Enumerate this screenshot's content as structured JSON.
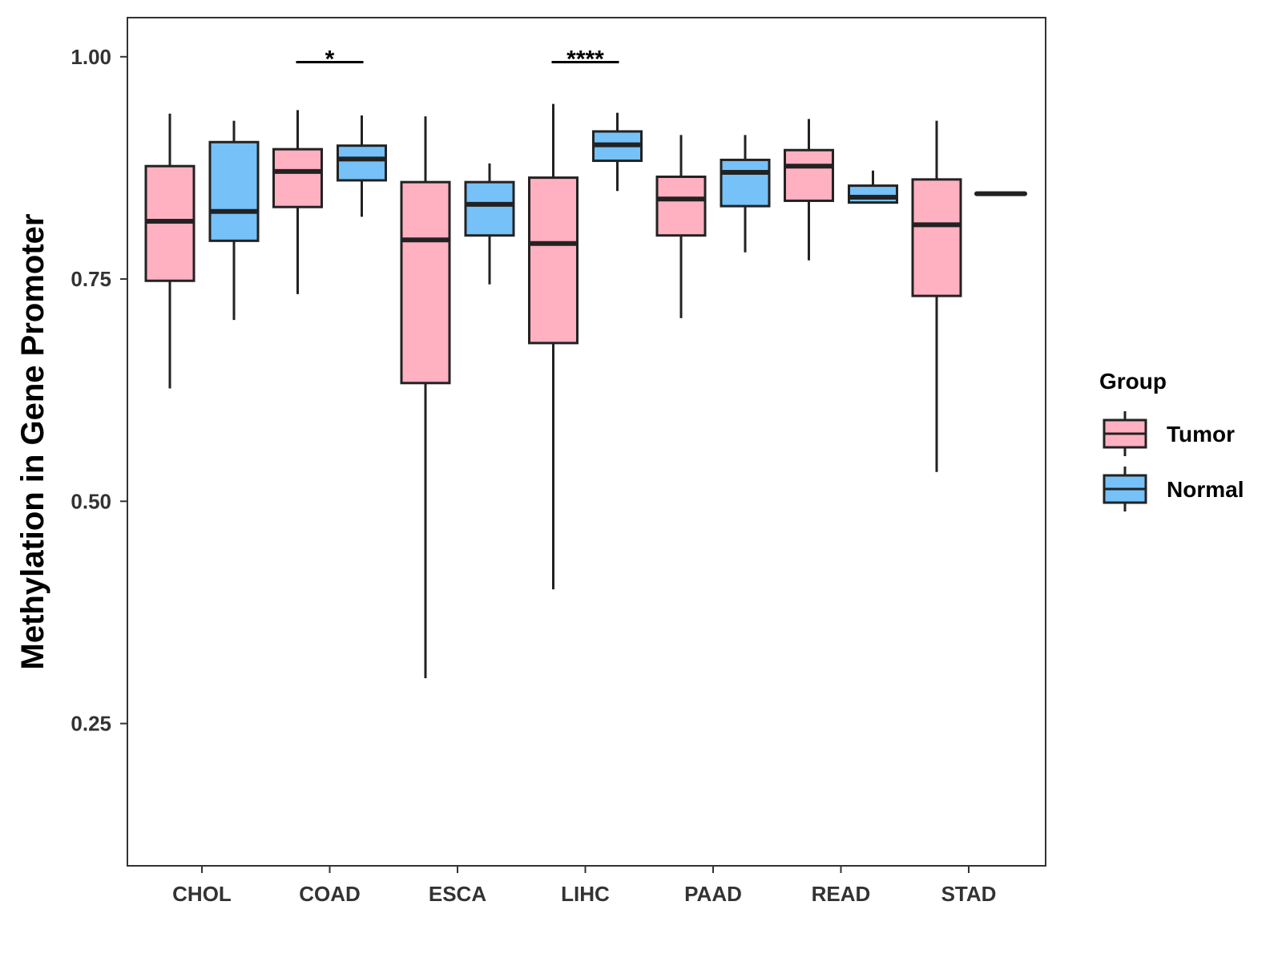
{
  "chart_data": {
    "type": "boxplot",
    "title": "",
    "xlabel": "",
    "ylabel": "Methylation in Gene Promoter",
    "ylim": [
      0.09,
      1.044
    ],
    "yticks": [
      {
        "value": 0.25,
        "label": "0.25"
      },
      {
        "value": 0.5,
        "label": "0.50"
      },
      {
        "value": 0.75,
        "label": "0.75"
      },
      {
        "value": 1.0,
        "label": "1.00"
      }
    ],
    "categories": [
      "CHOL",
      "COAD",
      "ESCA",
      "LIHC",
      "PAAD",
      "READ",
      "STAD"
    ],
    "legend": {
      "title": "Group",
      "position": "right",
      "entries": [
        {
          "name": "Tumor",
          "color": "#FFB0C1"
        },
        {
          "name": "Normal",
          "color": "#75C1F8"
        }
      ]
    },
    "series": [
      {
        "name": "Tumor",
        "color": "#FFB0C1",
        "boxes": [
          {
            "category": "CHOL",
            "min": 0.627,
            "q1": 0.748,
            "median": 0.815,
            "q3": 0.877,
            "max": 0.936
          },
          {
            "category": "COAD",
            "min": 0.733,
            "q1": 0.831,
            "median": 0.871,
            "q3": 0.896,
            "max": 0.94
          },
          {
            "category": "ESCA",
            "min": 0.301,
            "q1": 0.633,
            "median": 0.794,
            "q3": 0.859,
            "max": 0.933
          },
          {
            "category": "LIHC",
            "min": 0.401,
            "q1": 0.678,
            "median": 0.79,
            "q3": 0.864,
            "max": 0.947
          },
          {
            "category": "PAAD",
            "min": 0.706,
            "q1": 0.799,
            "median": 0.84,
            "q3": 0.865,
            "max": 0.912
          },
          {
            "category": "READ",
            "min": 0.771,
            "q1": 0.838,
            "median": 0.877,
            "q3": 0.895,
            "max": 0.93
          },
          {
            "category": "STAD",
            "min": 0.533,
            "q1": 0.731,
            "median": 0.811,
            "q3": 0.862,
            "max": 0.928
          }
        ]
      },
      {
        "name": "Normal",
        "color": "#75C1F8",
        "boxes": [
          {
            "category": "CHOL",
            "min": 0.704,
            "q1": 0.793,
            "median": 0.826,
            "q3": 0.904,
            "max": 0.928
          },
          {
            "category": "COAD",
            "min": 0.82,
            "q1": 0.861,
            "median": 0.885,
            "q3": 0.9,
            "max": 0.934
          },
          {
            "category": "ESCA",
            "min": 0.744,
            "q1": 0.799,
            "median": 0.834,
            "q3": 0.859,
            "max": 0.88
          },
          {
            "category": "LIHC",
            "min": 0.849,
            "q1": 0.883,
            "median": 0.901,
            "q3": 0.916,
            "max": 0.937
          },
          {
            "category": "PAAD",
            "min": 0.78,
            "q1": 0.832,
            "median": 0.87,
            "q3": 0.884,
            "max": 0.912
          },
          {
            "category": "READ",
            "min": 0.835,
            "q1": 0.836,
            "median": 0.842,
            "q3": 0.855,
            "max": 0.872
          },
          {
            "category": "STAD",
            "min": 0.846,
            "q1": 0.846,
            "median": 0.846,
            "q3": 0.846,
            "max": 0.846
          }
        ]
      }
    ],
    "annotations": [
      {
        "category": "COAD",
        "label": "*",
        "y": 0.994
      },
      {
        "category": "LIHC",
        "label": "****",
        "y": 0.994
      }
    ],
    "grid": false
  }
}
